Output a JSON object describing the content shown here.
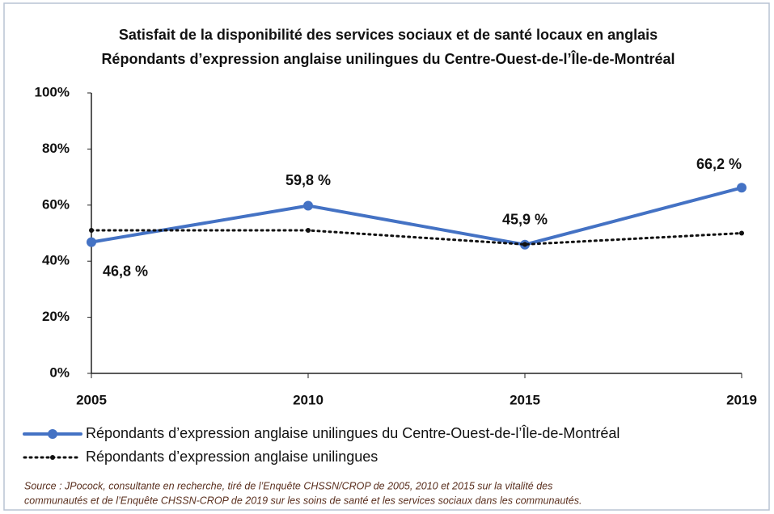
{
  "chart_data": {
    "type": "line",
    "title": "Satisfait  de la disponibilité des services sociaux  et de santé locaux  en anglais",
    "subtitle": "Répondants  d’expression  anglaise  unilingues  du Centre-Ouest-de-l’Île-de-Montréal",
    "categories": [
      "2005",
      "2010",
      "2015",
      "2019"
    ],
    "series": [
      {
        "name": "Répondants d’expression anglaise unilingues du Centre-Ouest-de-l’Île-de-Montréal",
        "color": "#4472c4",
        "style": "solid",
        "values": [
          46.8,
          59.8,
          45.9,
          66.2
        ],
        "value_labels": [
          "46,8 %",
          "59,8 %",
          "45,9 %",
          "66,2 %"
        ]
      },
      {
        "name": "Répondants d’expression anglaise unilingues",
        "color": "#111111",
        "style": "dotted",
        "values": [
          51,
          51,
          46,
          50
        ]
      }
    ],
    "ylim": [
      0,
      100
    ],
    "yticks": [
      {
        "value": 0,
        "label": "0%"
      },
      {
        "value": 20,
        "label": "20%"
      },
      {
        "value": 40,
        "label": "40%"
      },
      {
        "value": 60,
        "label": "60%"
      },
      {
        "value": 80,
        "label": "80%"
      },
      {
        "value": 100,
        "label": "100%"
      }
    ],
    "grid": false,
    "legend": "bottom",
    "source": [
      "Source : JPocock, consultante en recherche, tiré de l’Enquête CHSSN/CROP de 2005, 2010 et 2015 sur la vitalité des",
      "communautés et de l’Enquête CHSSN-CROP de 2019 sur les soins de santé et les services sociaux dans les communautés."
    ]
  }
}
